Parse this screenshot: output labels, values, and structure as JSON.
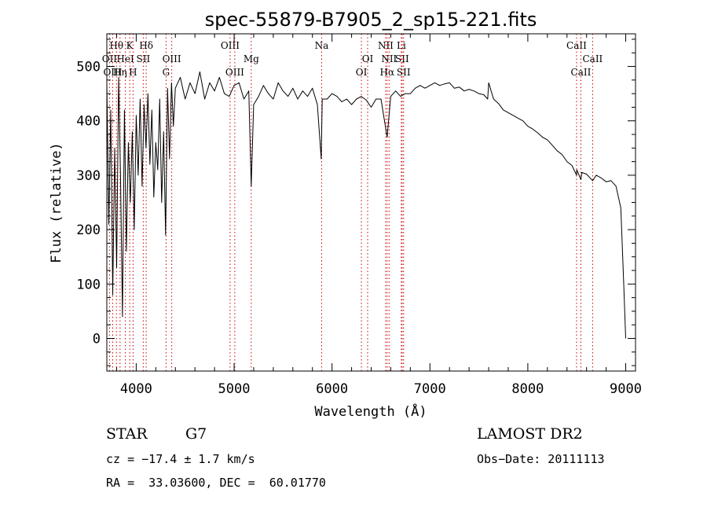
{
  "chart_data": {
    "type": "line",
    "title": "spec-55879-B7905_2_sp15-221.fits",
    "xlabel": "Wavelength (Å)",
    "ylabel": "Flux (relative)",
    "xlim": [
      3700,
      9100
    ],
    "ylim": [
      -60,
      560
    ],
    "xticks": [
      4000,
      5000,
      6000,
      7000,
      8000,
      9000
    ],
    "yticks": [
      0,
      100,
      200,
      300,
      400,
      500
    ],
    "line_color": "#000000",
    "marker_color": "#cc0000",
    "grid": false,
    "series": [
      {
        "x": [
          3700,
          3720,
          3740,
          3760,
          3780,
          3800,
          3820,
          3840,
          3860,
          3880,
          3900,
          3920,
          3940,
          3960,
          3980,
          4000,
          4020,
          4040,
          4060,
          4080,
          4100,
          4120,
          4140,
          4160,
          4180,
          4200,
          4220,
          4240,
          4260,
          4280,
          4300,
          4320,
          4340,
          4360,
          4380,
          4400,
          4450,
          4500,
          4550,
          4600,
          4650,
          4700,
          4750,
          4800,
          4850,
          4900,
          4950,
          5000,
          5050,
          5100,
          5150,
          5175,
          5200,
          5250,
          5300,
          5350,
          5400,
          5450,
          5500,
          5550,
          5600,
          5650,
          5700,
          5750,
          5800,
          5850,
          5890,
          5900,
          5950,
          6000,
          6050,
          6100,
          6150,
          6200,
          6250,
          6300,
          6350,
          6400,
          6450,
          6500,
          6563,
          6600,
          6650,
          6700,
          6750,
          6800,
          6850,
          6900,
          6950,
          7000,
          7050,
          7100,
          7150,
          7200,
          7250,
          7300,
          7350,
          7400,
          7450,
          7500,
          7550,
          7590,
          7600,
          7650,
          7700,
          7750,
          7800,
          7850,
          7900,
          7950,
          8000,
          8050,
          8100,
          8150,
          8200,
          8250,
          8300,
          8350,
          8400,
          8450,
          8498,
          8500,
          8542,
          8550,
          8600,
          8662,
          8700,
          8750,
          8800,
          8850,
          8900,
          8950,
          8980,
          9000
        ],
        "y": [
          470,
          210,
          420,
          80,
          350,
          130,
          480,
          300,
          40,
          420,
          160,
          360,
          250,
          380,
          200,
          410,
          300,
          440,
          280,
          430,
          350,
          450,
          320,
          420,
          260,
          360,
          310,
          440,
          250,
          380,
          190,
          460,
          330,
          470,
          390,
          460,
          480,
          440,
          470,
          450,
          490,
          440,
          470,
          455,
          480,
          450,
          445,
          465,
          470,
          440,
          455,
          280,
          430,
          445,
          465,
          450,
          440,
          470,
          455,
          445,
          460,
          440,
          455,
          445,
          460,
          430,
          330,
          440,
          440,
          450,
          445,
          435,
          440,
          430,
          440,
          445,
          438,
          425,
          440,
          440,
          370,
          445,
          455,
          445,
          450,
          450,
          460,
          465,
          460,
          465,
          470,
          465,
          468,
          470,
          460,
          462,
          455,
          458,
          455,
          450,
          448,
          440,
          470,
          440,
          432,
          420,
          415,
          410,
          405,
          400,
          390,
          385,
          378,
          370,
          365,
          355,
          345,
          338,
          325,
          318,
          300,
          310,
          292,
          305,
          302,
          290,
          300,
          295,
          288,
          290,
          280,
          240,
          100,
          0
        ]
      }
    ],
    "lines": [
      {
        "label": "Hθ",
        "x": 3798,
        "row": 0
      },
      {
        "label": "OII",
        "x": 3727,
        "row": 1
      },
      {
        "label": "OIII",
        "x": 3760,
        "row": 2
      },
      {
        "label": "Hη",
        "x": 3835,
        "row": 2
      },
      {
        "label": "HeI",
        "x": 3889,
        "row": 1
      },
      {
        "label": "K",
        "x": 3934,
        "row": 0
      },
      {
        "label": "H",
        "x": 3968,
        "row": 2
      },
      {
        "label": "SII",
        "x": 4072,
        "row": 1
      },
      {
        "label": "Hδ",
        "x": 4102,
        "row": 0
      },
      {
        "label": "G",
        "x": 4305,
        "row": 2
      },
      {
        "label": "OIII",
        "x": 4363,
        "row": 1
      },
      {
        "label": "OIII",
        "x": 4959,
        "row": 0
      },
      {
        "label": "OIII",
        "x": 5007,
        "row": 2
      },
      {
        "label": "Mg",
        "x": 5175,
        "row": 1
      },
      {
        "label": "Na",
        "x": 5894,
        "row": 0
      },
      {
        "label": "OI",
        "x": 6300,
        "row": 2
      },
      {
        "label": "OI",
        "x": 6364,
        "row": 1
      },
      {
        "label": "NII",
        "x": 6548,
        "row": 0
      },
      {
        "label": "Hα",
        "x": 6563,
        "row": 2
      },
      {
        "label": "NII",
        "x": 6583,
        "row": 1
      },
      {
        "label": "Li",
        "x": 6708,
        "row": 0
      },
      {
        "label": "SII",
        "x": 6716,
        "row": 1
      },
      {
        "label": "SII",
        "x": 6731,
        "row": 2
      },
      {
        "label": "CaII",
        "x": 8498,
        "row": 0
      },
      {
        "label": "CaII",
        "x": 8542,
        "row": 2
      },
      {
        "label": "CaII",
        "x": 8662,
        "row": 1
      }
    ]
  },
  "info": {
    "object_class": "STAR",
    "subclass": "G7",
    "survey": "LAMOST DR2",
    "redshift": "cz = −17.4 ± 1.7 km/s",
    "obs_date": "Obs−Date: 20111113",
    "coords": "RA =  33.03600, DEC =  60.01770"
  }
}
